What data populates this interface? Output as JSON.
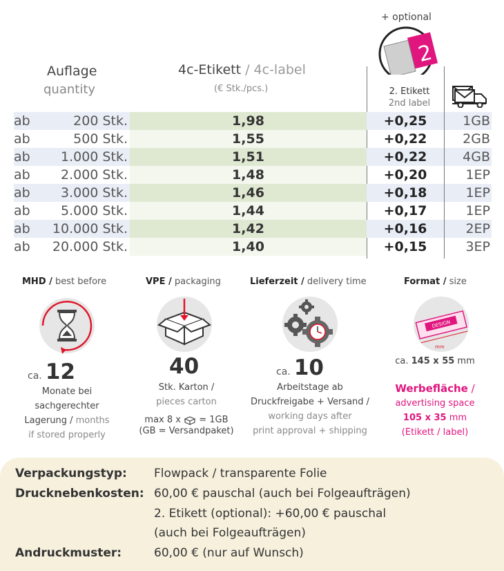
{
  "header": {
    "auflage": "Auflage",
    "quantity": "quantity",
    "label_de": "4c-Etikett",
    "label_sep": " / ",
    "label_en": "4c-label",
    "unit": "(€ Stk./pcs.)",
    "optional": "+ optional",
    "second_de": "2. Etikett",
    "second_en": "2nd label"
  },
  "colors": {
    "row_blue": "#e9edf6",
    "row_green": "#e9f1df",
    "row_green_dark": "#dfe9d2",
    "pink": "#e0157e",
    "bottom_bg": "#f6f0dd"
  },
  "rows": [
    {
      "ab": "ab",
      "qty": "200 Stk.",
      "price": "1,98",
      "opt": "+0,25",
      "ship": "1GB"
    },
    {
      "ab": "ab",
      "qty": "500 Stk.",
      "price": "1,55",
      "opt": "+0,22",
      "ship": "2GB"
    },
    {
      "ab": "ab",
      "qty": "1.000 Stk.",
      "price": "1,51",
      "opt": "+0,22",
      "ship": "4GB"
    },
    {
      "ab": "ab",
      "qty": "2.000 Stk.",
      "price": "1,48",
      "opt": "+0,20",
      "ship": "1EP"
    },
    {
      "ab": "ab",
      "qty": "3.000 Stk.",
      "price": "1,46",
      "opt": "+0,18",
      "ship": "1EP"
    },
    {
      "ab": "ab",
      "qty": "5.000 Stk.",
      "price": "1,44",
      "opt": "+0,17",
      "ship": "1EP"
    },
    {
      "ab": "ab",
      "qty": "10.000 Stk.",
      "price": "1,42",
      "opt": "+0,16",
      "ship": "2EP"
    },
    {
      "ab": "ab",
      "qty": "20.000 Stk.",
      "price": "1,40",
      "opt": "+0,15",
      "ship": "3EP"
    }
  ],
  "info": {
    "mhd": {
      "title_de": "MHD /",
      "title_en": " best before",
      "ca": "ca.",
      "num": "12",
      "line1": "Monate bei",
      "line2": "sachgerechter",
      "line3_de": "Lagerung /",
      "line3_en": " months",
      "line4": "if stored properly"
    },
    "vpe": {
      "title_de": "VPE /",
      "title_en": " packaging",
      "num": "40",
      "line1": "Stk. Karton /",
      "line2": "pieces carton",
      "line3a": "max 8 x",
      "line3b": "= 1GB",
      "line4": "(GB = Versandpaket)"
    },
    "lieferzeit": {
      "title_de": "Lieferzeit /",
      "title_en": " delivery time",
      "ca": "ca.",
      "num": "10",
      "line1": "Arbeitstage ab",
      "line2": "Druckfreigabe + Versand /",
      "line3": "working days after",
      "line4": "print approval + shipping"
    },
    "format": {
      "title_de": "Format /",
      "title_en": " size",
      "design_text": "DESIGN",
      "mm_text": "mm",
      "ca": "ca.",
      "size": "145 x 55",
      "unit": " mm",
      "werbe_de": "Werbefläche",
      "werbe_sep": " /",
      "werbe_en": "advertising space",
      "werbe_size": "105 x 35",
      "werbe_unit": " mm",
      "werbe_note": "(Etikett / label)"
    }
  },
  "bottom": {
    "typ_label": "Verpackungstyp:",
    "typ_value": "Flowpack / transparente Folie",
    "kosten_label": "Drucknebenkosten:",
    "kosten_value1": "60,00 € pauschal (auch bei Folgeaufträgen)",
    "kosten_value2": "2. Etikett (optional): +60,00 € pauschal",
    "kosten_value3": "(auch bei Folgeaufträgen)",
    "muster_label": "Andruckmuster:",
    "muster_value": "60,00 € (nur auf Wunsch)"
  }
}
